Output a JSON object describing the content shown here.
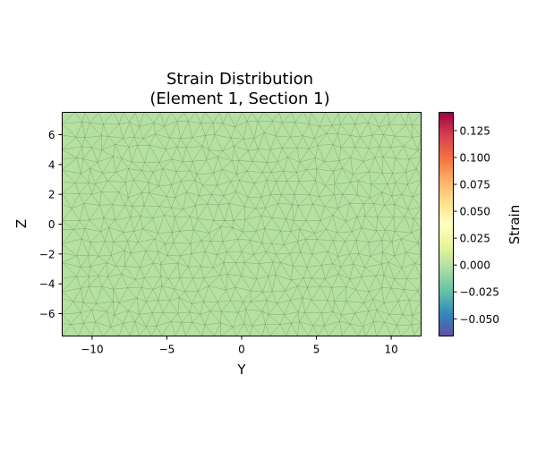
{
  "chart_data": {
    "type": "heatmap",
    "title_line1": "Strain Distribution",
    "title_line2": "(Element 1, Section 1)",
    "xlabel": "Y",
    "ylabel": "Z",
    "colorbar_label": "Strain",
    "xlim": [
      -12,
      12
    ],
    "ylim": [
      -7.5,
      7.5
    ],
    "xticks": [
      -10,
      -5,
      0,
      5,
      10
    ],
    "yticks": [
      -6,
      -4,
      -2,
      0,
      2,
      4,
      6
    ],
    "xtick_labels": [
      "−10",
      "−5",
      "0",
      "5",
      "10"
    ],
    "ytick_labels": [
      "−6",
      "−4",
      "−2",
      "0",
      "2",
      "4",
      "6"
    ],
    "colorbar_range": [
      -0.066,
      0.142
    ],
    "colorbar_ticks": [
      -0.05,
      -0.025,
      0.0,
      0.025,
      0.05,
      0.075,
      0.1,
      0.125
    ],
    "colorbar_tick_labels": [
      "−0.050",
      "−0.025",
      "0.000",
      "0.025",
      "0.050",
      "0.075",
      "0.100",
      "0.125"
    ],
    "colormap": "Spectral_r",
    "colormap_stops": [
      "#5e4fa2",
      "#3288bd",
      "#66c2a5",
      "#abdda4",
      "#e6f598",
      "#ffffbf",
      "#fee08b",
      "#fdae61",
      "#f46d43",
      "#d53e4f",
      "#9e0142"
    ],
    "mesh": "triangular",
    "field_value": 0.0,
    "field_color": "#b4e0a0"
  }
}
